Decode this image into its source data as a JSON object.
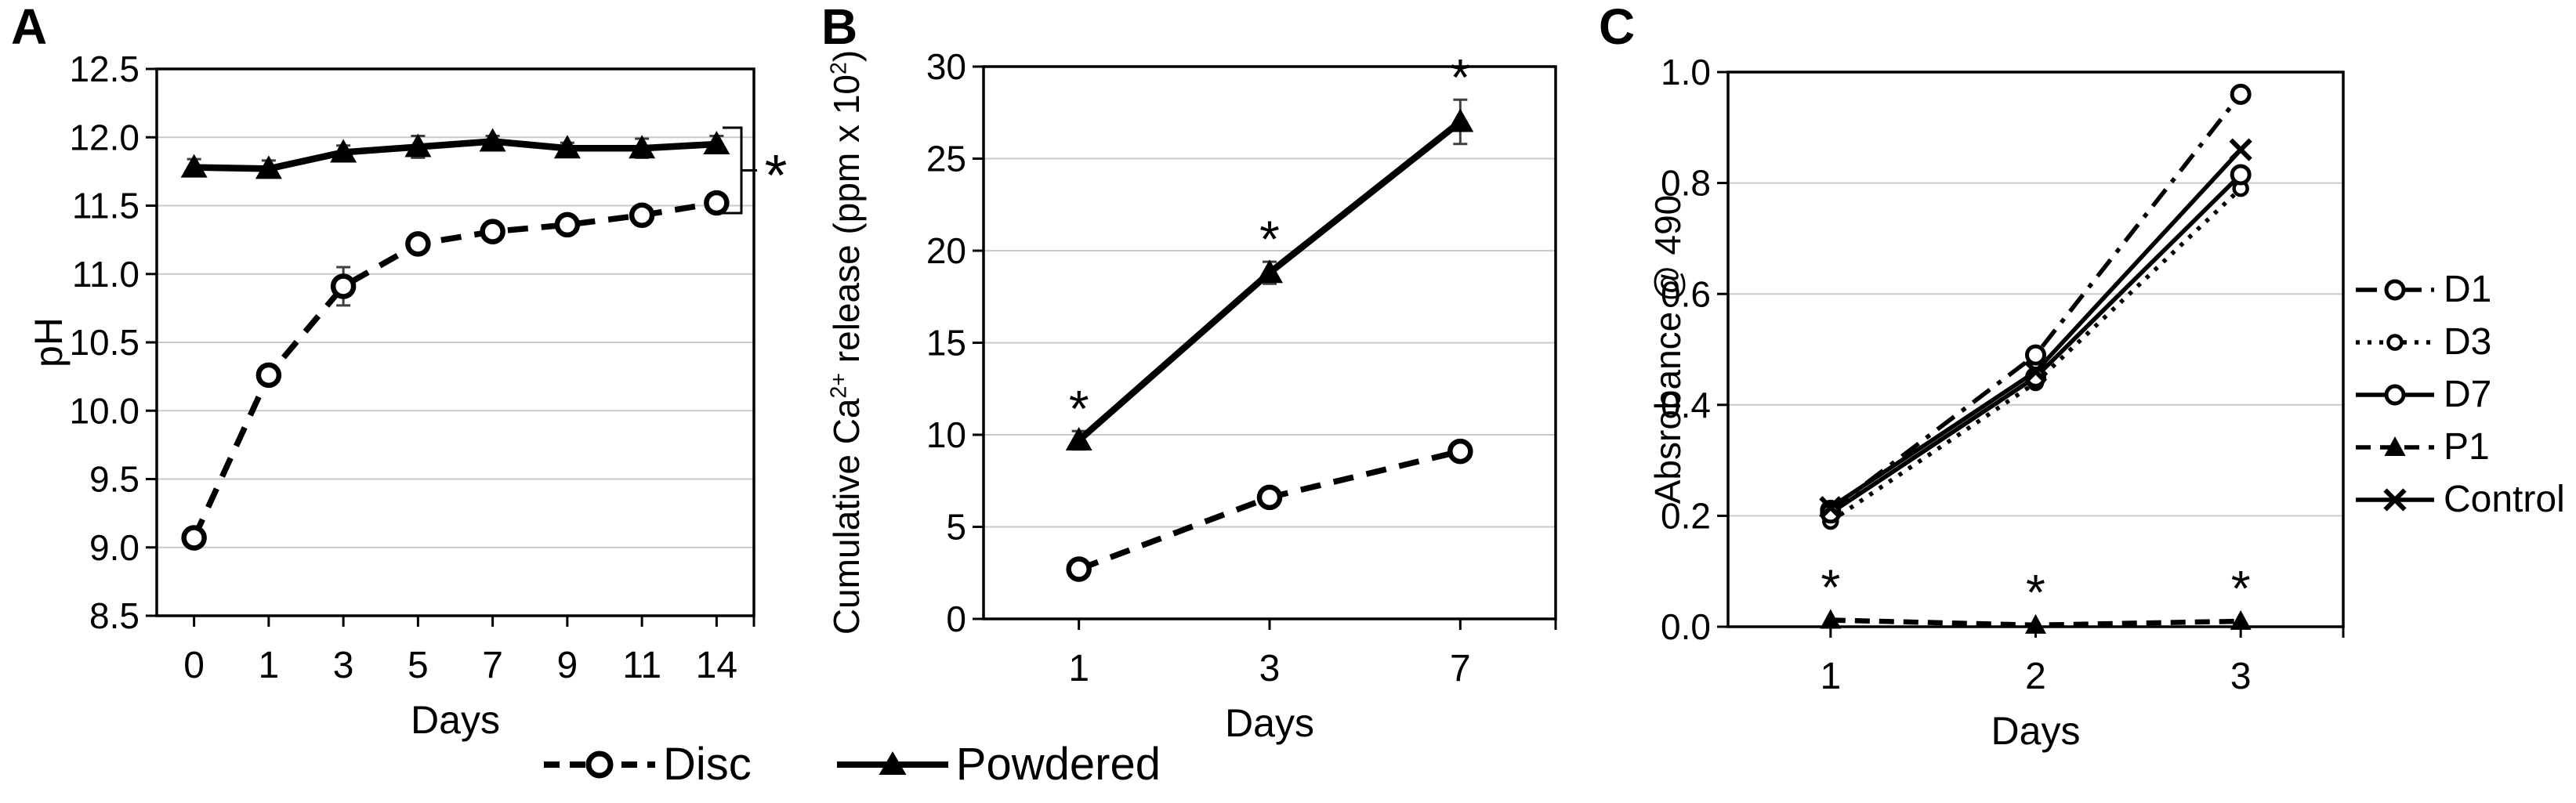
{
  "colors": {
    "foreground": "#000000",
    "background": "#ffffff",
    "grid": "#c9c9c9",
    "error_bar": "#3f3f3f"
  },
  "shared_legend": {
    "items": [
      {
        "label": "Disc"
      },
      {
        "label": "Powdered"
      }
    ]
  },
  "chart_data": [
    {
      "type": "line",
      "panel_label": "A",
      "xlabel": "Days",
      "ylabel": "pH",
      "x_categories": [
        "0",
        "1",
        "3",
        "5",
        "7",
        "9",
        "11",
        "14"
      ],
      "ylim": [
        8.5,
        12.5
      ],
      "ytick_step": 0.5,
      "ytick_labels": [
        "12.5",
        "12.0",
        "11.5",
        "11.0",
        "10.5",
        "10.0",
        "9.5",
        "9.0",
        "8.5"
      ],
      "grid": "horizontal",
      "legend_position": "bottom-shared",
      "series": [
        {
          "name": "Disc",
          "line": "dashed",
          "marker": "open-circle",
          "values": [
            9.07,
            10.26,
            10.91,
            11.22,
            11.31,
            11.36,
            11.43,
            11.52
          ],
          "errors": [
            0.07,
            0.06,
            0.14,
            0.05,
            0.03,
            0.03,
            0.04,
            0.04
          ]
        },
        {
          "name": "Powdered",
          "line": "solid",
          "marker": "filled-triangle",
          "values": [
            11.78,
            11.77,
            11.89,
            11.93,
            11.97,
            11.92,
            11.92,
            11.95
          ],
          "errors": [
            0.06,
            0.06,
            0.05,
            0.08,
            0.04,
            0.04,
            0.07,
            0.06
          ]
        }
      ],
      "significance": {
        "type": "bracket",
        "label": "*",
        "note": "bracket between Disc and Powdered at day 14"
      }
    },
    {
      "type": "line",
      "panel_label": "B",
      "xlabel": "Days",
      "ylabel": "Cumulative Ca2+ release (ppm x 102)",
      "ylabel_parts": [
        {
          "t": "Cumulative Ca"
        },
        {
          "t": "2+",
          "sup": true
        },
        {
          "t": " release (ppm x 10"
        },
        {
          "t": "2",
          "sup": true
        },
        {
          "t": ")"
        }
      ],
      "x_categories": [
        "1",
        "3",
        "7"
      ],
      "ylim": [
        0,
        30
      ],
      "ytick_step": 5,
      "ytick_labels": [
        "30",
        "25",
        "20",
        "15",
        "10",
        "5",
        "0"
      ],
      "grid": "horizontal",
      "legend_position": "bottom-shared",
      "series": [
        {
          "name": "Disc",
          "line": "dashed",
          "marker": "open-circle",
          "values": [
            2.7,
            6.6,
            9.1
          ],
          "errors": [
            0.4,
            0.2,
            0.2
          ]
        },
        {
          "name": "Powdered",
          "line": "solid",
          "marker": "filled-triangle",
          "values": [
            9.7,
            18.8,
            27.0
          ],
          "errors": [
            0.5,
            0.6,
            1.2
          ],
          "asterisks": [
            true,
            true,
            true
          ]
        }
      ],
      "significance": {
        "type": "asterisks",
        "label": "*",
        "note": "asterisk above each Powdered point"
      }
    },
    {
      "type": "line",
      "panel_label": "C",
      "xlabel": "Days",
      "ylabel": "Absrobance @ 490",
      "x_categories": [
        "1",
        "2",
        "3"
      ],
      "ylim": [
        0,
        1.0
      ],
      "ytick_step": 0.2,
      "ytick_labels": [
        "1.0",
        "0.8",
        "0.6",
        "0.4",
        "0.2",
        "0.0"
      ],
      "grid": "horizontal",
      "legend_position": "right",
      "series": [
        {
          "name": "D1",
          "line": "dashdot",
          "marker": "open-circle",
          "values": [
            0.21,
            0.49,
            0.96
          ]
        },
        {
          "name": "D3",
          "line": "dotted",
          "marker": "open-circle-small",
          "values": [
            0.19,
            0.44,
            0.79
          ]
        },
        {
          "name": "D7",
          "line": "solid",
          "marker": "open-circle",
          "values": [
            0.205,
            0.45,
            0.815
          ]
        },
        {
          "name": "P1",
          "line": "dashed",
          "marker": "filled-triangle",
          "values": [
            0.012,
            0.003,
            0.01
          ],
          "asterisks": [
            true,
            true,
            true
          ]
        },
        {
          "name": "Control",
          "line": "solid",
          "marker": "x-cross",
          "values": [
            0.215,
            0.46,
            0.86
          ]
        }
      ],
      "significance": {
        "type": "asterisks",
        "label": "*",
        "note": "asterisk above each P1 point"
      }
    }
  ]
}
